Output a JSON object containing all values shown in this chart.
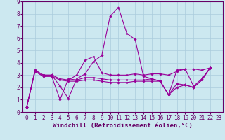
{
  "background_color": "#cce8f0",
  "grid_color": "#aaccdd",
  "line_color": "#990099",
  "xlabel": "Windchill (Refroidissement éolien,°C)",
  "xlim": [
    -0.5,
    23.5
  ],
  "ylim": [
    0,
    9
  ],
  "xticks": [
    0,
    1,
    2,
    3,
    4,
    5,
    6,
    7,
    8,
    9,
    10,
    11,
    12,
    13,
    14,
    15,
    16,
    17,
    18,
    19,
    20,
    21,
    22,
    23
  ],
  "yticks": [
    0,
    1,
    2,
    3,
    4,
    5,
    6,
    7,
    8,
    9
  ],
  "series": [
    [
      0.4,
      3.4,
      3.0,
      3.0,
      2.1,
      1.1,
      2.7,
      3.1,
      4.1,
      4.6,
      7.8,
      8.5,
      6.4,
      5.9,
      2.9,
      2.7,
      2.5,
      1.4,
      3.4,
      3.5,
      2.1,
      2.7,
      3.6
    ],
    [
      0.4,
      3.4,
      3.0,
      3.0,
      2.7,
      2.6,
      3.0,
      4.2,
      4.5,
      3.2,
      3.0,
      3.0,
      3.0,
      3.1,
      3.0,
      3.1,
      3.1,
      3.0,
      3.3,
      3.5,
      3.5,
      3.4,
      3.6
    ],
    [
      0.4,
      3.3,
      2.9,
      2.9,
      1.0,
      2.7,
      2.6,
      2.8,
      2.8,
      2.7,
      2.6,
      2.6,
      2.6,
      2.6,
      2.6,
      2.7,
      2.5,
      1.4,
      2.3,
      2.2,
      2.0,
      2.6,
      3.6
    ],
    [
      0.4,
      3.3,
      2.9,
      2.9,
      2.6,
      2.5,
      2.5,
      2.6,
      2.6,
      2.5,
      2.4,
      2.4,
      2.4,
      2.5,
      2.5,
      2.5,
      2.5,
      1.4,
      2.0,
      2.2,
      2.0,
      2.6,
      3.6
    ]
  ],
  "axis_fontsize": 6.5,
  "tick_fontsize": 5.5
}
